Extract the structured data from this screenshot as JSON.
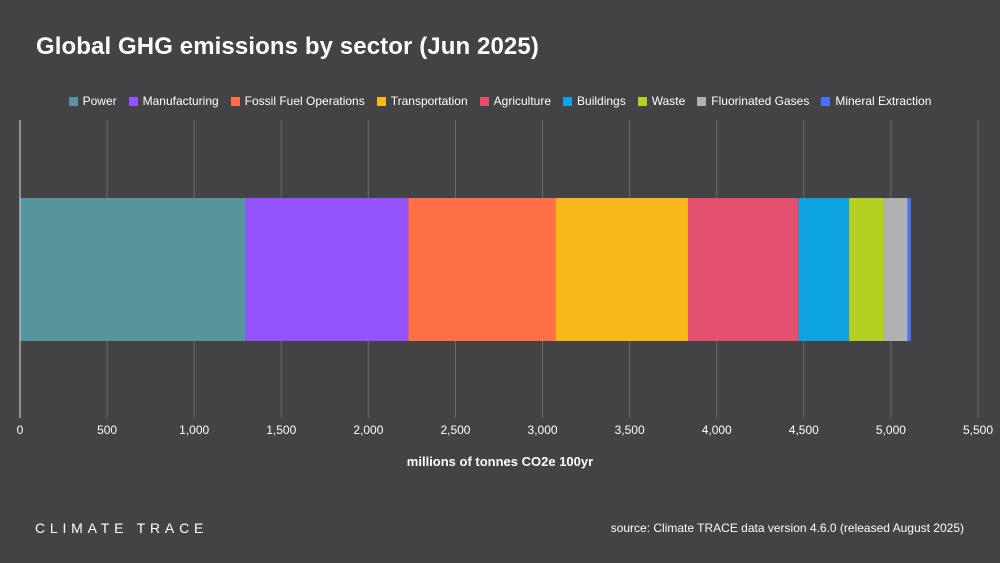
{
  "colors": {
    "background": "#434345",
    "grid": "#6a6a6c",
    "text": "#ffffff"
  },
  "chart_data": {
    "type": "bar",
    "orientation": "horizontal-stacked",
    "title": "Global GHG emissions by sector (Jun 2025)",
    "xlabel": "millions of tonnes CO2e 100yr",
    "ylabel": "",
    "xlim": [
      0,
      5500
    ],
    "xticks": [
      0,
      500,
      1000,
      1500,
      2000,
      2500,
      3000,
      3500,
      4000,
      4500,
      5000,
      5500
    ],
    "xtick_labels": [
      "0",
      "500",
      "1,000",
      "1,500",
      "2,000",
      "2,500",
      "3,000",
      "3,500",
      "4,000",
      "4,500",
      "5,000",
      "5,500"
    ],
    "grid": true,
    "legend_position": "top",
    "series": [
      {
        "name": "Power",
        "value": 1295,
        "color": "#56959c"
      },
      {
        "name": "Manufacturing",
        "value": 935,
        "color": "#9553fe"
      },
      {
        "name": "Fossil Fuel Operations",
        "value": 845,
        "color": "#fe6f45"
      },
      {
        "name": "Transportation",
        "value": 760,
        "color": "#fab71a"
      },
      {
        "name": "Agriculture",
        "value": 635,
        "color": "#e3506d"
      },
      {
        "name": "Buildings",
        "value": 290,
        "color": "#0da3e2"
      },
      {
        "name": "Waste",
        "value": 200,
        "color": "#b5d022"
      },
      {
        "name": "Fluorinated Gases",
        "value": 135,
        "color": "#b1b1b1"
      },
      {
        "name": "Mineral Extraction",
        "value": 20,
        "color": "#4573f4"
      }
    ]
  },
  "footer": {
    "brand": "CLIMATE TRACE",
    "source": "source: Climate TRACE data version 4.6.0 (released August 2025)"
  }
}
